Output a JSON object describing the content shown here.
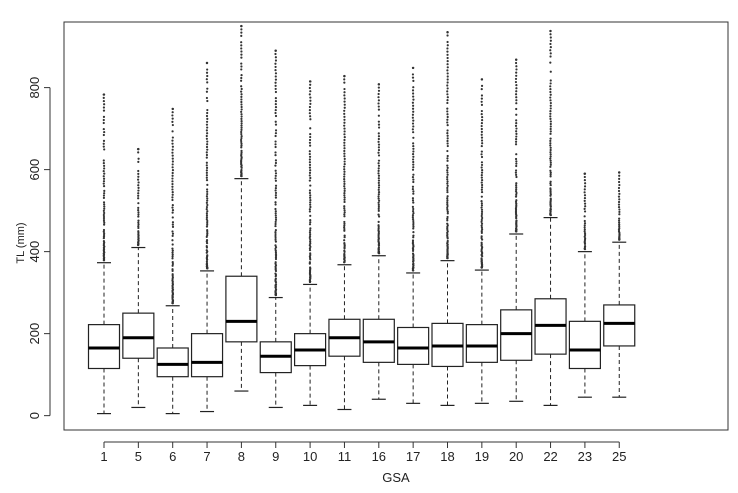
{
  "chart_data": {
    "type": "boxplot",
    "xlabel": "GSA",
    "ylabel": "TL  (mm)",
    "ylim": [
      -35,
      960
    ],
    "yticks": [
      0,
      200,
      400,
      600,
      800
    ],
    "categories": [
      "1",
      "5",
      "6",
      "7",
      "8",
      "9",
      "10",
      "11",
      "16",
      "17",
      "18",
      "19",
      "20",
      "22",
      "23",
      "25"
    ],
    "boxes": [
      {
        "category": "1",
        "whisker_low": 5,
        "q1": 115,
        "median": 165,
        "q3": 222,
        "whisker_high": 373,
        "outlier_max": 783
      },
      {
        "category": "5",
        "whisker_low": 20,
        "q1": 140,
        "median": 190,
        "q3": 250,
        "whisker_high": 410,
        "outlier_max": 650
      },
      {
        "category": "6",
        "whisker_low": 5,
        "q1": 95,
        "median": 125,
        "q3": 165,
        "whisker_high": 268,
        "outlier_max": 748
      },
      {
        "category": "7",
        "whisker_low": 10,
        "q1": 95,
        "median": 130,
        "q3": 200,
        "whisker_high": 353,
        "outlier_max": 860
      },
      {
        "category": "8",
        "whisker_low": 60,
        "q1": 180,
        "median": 230,
        "q3": 340,
        "whisker_high": 578,
        "outlier_max": 950
      },
      {
        "category": "9",
        "whisker_low": 20,
        "q1": 105,
        "median": 145,
        "q3": 180,
        "whisker_high": 288,
        "outlier_max": 890
      },
      {
        "category": "10",
        "whisker_low": 25,
        "q1": 122,
        "median": 160,
        "q3": 200,
        "whisker_high": 320,
        "outlier_max": 815
      },
      {
        "category": "11",
        "whisker_low": 15,
        "q1": 145,
        "median": 190,
        "q3": 235,
        "whisker_high": 368,
        "outlier_max": 828
      },
      {
        "category": "16",
        "whisker_low": 40,
        "q1": 130,
        "median": 180,
        "q3": 235,
        "whisker_high": 390,
        "outlier_max": 808
      },
      {
        "category": "17",
        "whisker_low": 30,
        "q1": 125,
        "median": 165,
        "q3": 215,
        "whisker_high": 348,
        "outlier_max": 848
      },
      {
        "category": "18",
        "whisker_low": 25,
        "q1": 120,
        "median": 170,
        "q3": 225,
        "whisker_high": 378,
        "outlier_max": 935
      },
      {
        "category": "19",
        "whisker_low": 30,
        "q1": 130,
        "median": 170,
        "q3": 222,
        "whisker_high": 355,
        "outlier_max": 820
      },
      {
        "category": "20",
        "whisker_low": 35,
        "q1": 135,
        "median": 200,
        "q3": 258,
        "whisker_high": 443,
        "outlier_max": 868
      },
      {
        "category": "22",
        "whisker_low": 25,
        "q1": 150,
        "median": 220,
        "q3": 285,
        "whisker_high": 483,
        "outlier_max": 938
      },
      {
        "category": "23",
        "whisker_low": 45,
        "q1": 115,
        "median": 160,
        "q3": 230,
        "whisker_high": 400,
        "outlier_max": 590
      },
      {
        "category": "25",
        "whisker_low": 45,
        "q1": 170,
        "median": 225,
        "q3": 270,
        "whisker_high": 423,
        "outlier_max": 593
      }
    ],
    "grid": false,
    "legend": "none"
  }
}
